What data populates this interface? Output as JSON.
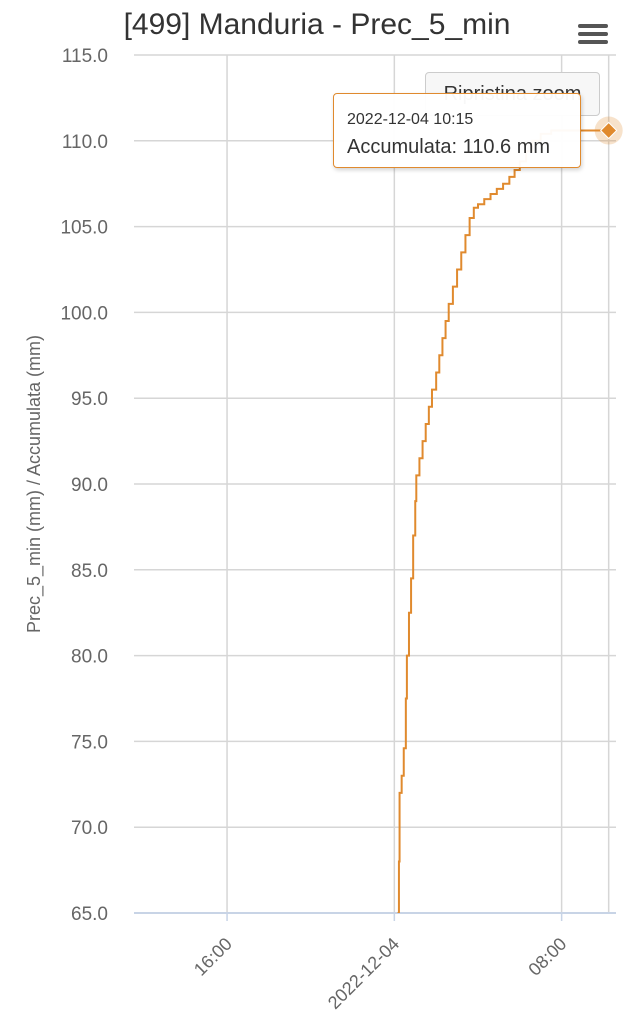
{
  "chart_data": {
    "type": "line",
    "title": "[499] Manduria - Prec_5_min",
    "ylabel": "Prec_5_min (mm) / Accumulata (mm)",
    "xlabel": "",
    "ylim": [
      65,
      115
    ],
    "y_ticks": [
      "65.0",
      "70.0",
      "75.0",
      "80.0",
      "85.0",
      "90.0",
      "95.0",
      "100.0",
      "105.0",
      "110.0",
      "115.0"
    ],
    "x_ticks": [
      {
        "label": "16:00",
        "hours": 16
      },
      {
        "label": "2022-12-04",
        "hours": 24
      },
      {
        "label": "08:00",
        "hours": 32
      }
    ],
    "xlim_hours": [
      11.55,
      34.6
    ],
    "grid": true,
    "series": [
      {
        "name": "Accumulata",
        "color": "#e08a2e",
        "points": [
          [
            24.2,
            62.0
          ],
          [
            24.2,
            65.0
          ],
          [
            24.22,
            68.0
          ],
          [
            24.25,
            72.0
          ],
          [
            24.35,
            73.0
          ],
          [
            24.45,
            74.6
          ],
          [
            24.55,
            77.5
          ],
          [
            24.6,
            80.0
          ],
          [
            24.7,
            82.5
          ],
          [
            24.8,
            84.5
          ],
          [
            24.9,
            87.0
          ],
          [
            25.0,
            89.0
          ],
          [
            25.05,
            90.5
          ],
          [
            25.2,
            91.5
          ],
          [
            25.35,
            92.5
          ],
          [
            25.5,
            93.5
          ],
          [
            25.65,
            94.5
          ],
          [
            25.8,
            95.5
          ],
          [
            26.0,
            96.5
          ],
          [
            26.15,
            97.5
          ],
          [
            26.3,
            98.5
          ],
          [
            26.45,
            99.5
          ],
          [
            26.6,
            100.5
          ],
          [
            26.8,
            101.5
          ],
          [
            27.0,
            102.5
          ],
          [
            27.2,
            103.5
          ],
          [
            27.4,
            104.5
          ],
          [
            27.6,
            105.5
          ],
          [
            27.8,
            106.1
          ],
          [
            28.0,
            106.3
          ],
          [
            28.3,
            106.6
          ],
          [
            28.6,
            106.9
          ],
          [
            28.9,
            107.2
          ],
          [
            29.2,
            107.5
          ],
          [
            29.5,
            107.9
          ],
          [
            29.75,
            108.3
          ],
          [
            30.0,
            108.8
          ],
          [
            30.3,
            109.4
          ],
          [
            30.6,
            110.0
          ],
          [
            31.0,
            110.4
          ],
          [
            31.5,
            110.6
          ],
          [
            34.25,
            110.6
          ]
        ]
      }
    ],
    "highlight_point": [
      34.25,
      110.6
    ]
  },
  "tooltip": {
    "date": "2022-12-04 10:15",
    "label": "Accumulata: 110.6 mm"
  },
  "reset_zoom_label": "Ripristina zoom",
  "menu_icon": "hamburger-menu-icon",
  "colors": {
    "series": "#e08a2e",
    "grid": "#d6d6d6",
    "axis": "#c8d4e6",
    "text": "#666666"
  }
}
